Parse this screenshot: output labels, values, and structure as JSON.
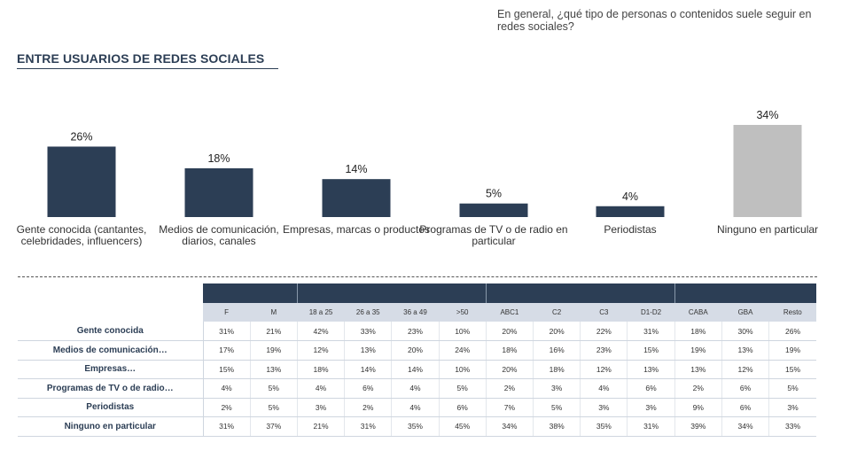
{
  "question": "En general, ¿qué tipo de personas o contenidos suele seguir en redes sociales?",
  "section_title": "ENTRE USUARIOS DE REDES SOCIALES",
  "colors": {
    "primary": "#2c3e55",
    "neutral": "#bfbfbf",
    "subheader": "#d6dce6"
  },
  "chart_data": {
    "type": "bar",
    "title": "ENTRE USUARIOS DE REDES SOCIALES",
    "categories": [
      [
        "Gente conocida (cantantes,",
        "celebridades, influencers)"
      ],
      [
        "Medios de comunicación,",
        "diarios, canales"
      ],
      [
        "Empresas, marcas o productos"
      ],
      [
        "Programas de TV o de radio en",
        "particular"
      ],
      [
        "Periodistas"
      ],
      [
        "Ninguno en particular"
      ]
    ],
    "values": [
      26,
      18,
      14,
      5,
      4,
      34
    ],
    "value_labels": [
      "26%",
      "18%",
      "14%",
      "5%",
      "4%",
      "34%"
    ],
    "bar_colors": [
      "#2c3e55",
      "#2c3e55",
      "#2c3e55",
      "#2c3e55",
      "#2c3e55",
      "#bfbfbf"
    ],
    "ylim": [
      0,
      40
    ],
    "xlabel": "",
    "ylabel": ""
  },
  "table": {
    "group_headers": [
      "",
      "",
      "",
      ""
    ],
    "columns": [
      "F",
      "M",
      "18 a 25",
      "26 a 35",
      "36 a 49",
      ">50",
      "ABC1",
      "C2",
      "C3",
      "D1-D2",
      "CABA",
      "GBA",
      "Resto"
    ],
    "rows": [
      {
        "label": "Gente conocida",
        "values": [
          "31%",
          "21%",
          "42%",
          "33%",
          "23%",
          "10%",
          "20%",
          "20%",
          "22%",
          "31%",
          "18%",
          "30%",
          "26%"
        ]
      },
      {
        "label": "Medios de comunicación…",
        "values": [
          "17%",
          "19%",
          "12%",
          "13%",
          "20%",
          "24%",
          "18%",
          "16%",
          "23%",
          "15%",
          "19%",
          "13%",
          "19%"
        ]
      },
      {
        "label": "Empresas…",
        "values": [
          "15%",
          "13%",
          "18%",
          "14%",
          "14%",
          "10%",
          "20%",
          "18%",
          "12%",
          "13%",
          "13%",
          "12%",
          "15%"
        ]
      },
      {
        "label": "Programas de TV o de radio…",
        "values": [
          "4%",
          "5%",
          "4%",
          "6%",
          "4%",
          "5%",
          "2%",
          "3%",
          "4%",
          "6%",
          "2%",
          "6%",
          "5%"
        ]
      },
      {
        "label": "Periodistas",
        "values": [
          "2%",
          "5%",
          "3%",
          "2%",
          "4%",
          "6%",
          "7%",
          "5%",
          "3%",
          "3%",
          "9%",
          "6%",
          "3%"
        ]
      },
      {
        "label": "Ninguno en particular",
        "values": [
          "31%",
          "37%",
          "21%",
          "31%",
          "35%",
          "45%",
          "34%",
          "38%",
          "35%",
          "31%",
          "39%",
          "34%",
          "33%"
        ]
      }
    ]
  }
}
